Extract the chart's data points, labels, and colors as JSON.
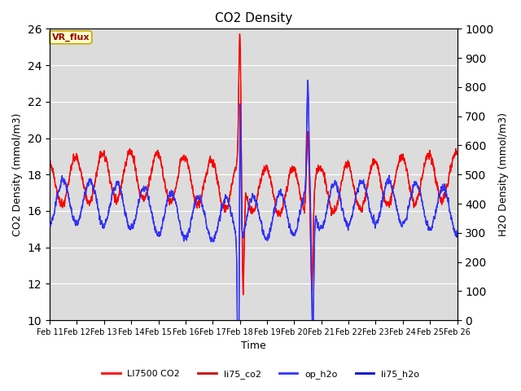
{
  "title": "CO2 Density",
  "xlabel": "Time",
  "ylabel_left": "CO2 Density (mmol/m3)",
  "ylabel_right": "H2O Density (mmol/m3)",
  "annotation": "VR_flux",
  "ylim_left": [
    10,
    26
  ],
  "ylim_right": [
    0,
    1000
  ],
  "yticks_left": [
    10,
    12,
    14,
    16,
    18,
    20,
    22,
    24,
    26
  ],
  "yticks_right": [
    0,
    100,
    200,
    300,
    400,
    500,
    600,
    700,
    800,
    900,
    1000
  ],
  "xtick_labels": [
    "Feb 11",
    "Feb 12",
    "Feb 13",
    "Feb 14",
    "Feb 15",
    "Feb 16",
    "Feb 17",
    "Feb 18",
    "Feb 19",
    "Feb 20",
    "Feb 21",
    "Feb 22",
    "Feb 23",
    "Feb 24",
    "Feb 25",
    "Feb 26"
  ],
  "legend_labels": [
    "LI7500 CO2",
    "li75_co2",
    "op_h2o",
    "li75_h2o"
  ],
  "line_LI7500_CO2_color": "#ff0000",
  "line_li75_co2_color": "#cc0000",
  "line_op_h2o_color": "#3333ff",
  "line_li75_h2o_color": "#0000cc",
  "background_color": "#dcdcdc",
  "grid_color": "#ffffff",
  "num_days": 15,
  "seed": 42
}
